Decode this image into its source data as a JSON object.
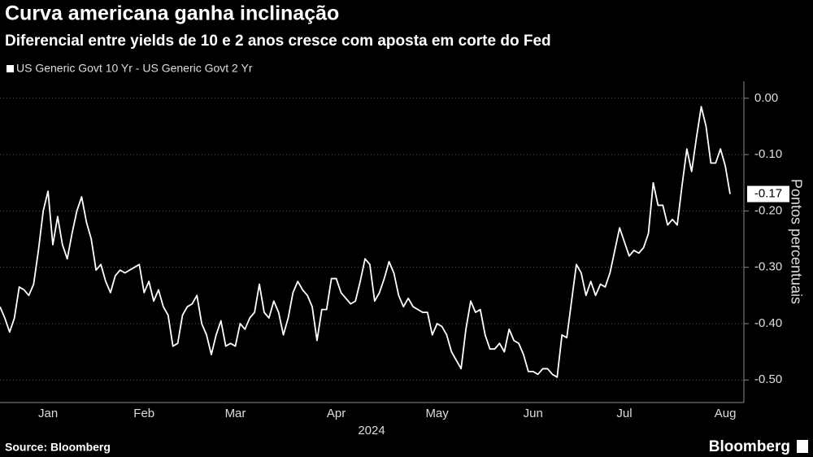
{
  "chart_data": {
    "type": "line",
    "title": "Curva americana ganha inclinação",
    "subtitle": "Diferencial entre yields de 10 e 2 anos cresce com aposta em corte do Fed",
    "y_label": "Pontos percentuais",
    "x_label": "2024",
    "source": "Source: Bloomberg",
    "brand": "Bloomberg",
    "grid": true,
    "series": [
      {
        "name": "US Generic Govt 10 Yr - US Generic Govt 2 Yr",
        "color": "#ffffff",
        "values": [
          -0.37,
          -0.39,
          -0.415,
          -0.39,
          -0.335,
          -0.34,
          -0.35,
          -0.33,
          -0.27,
          -0.2,
          -0.165,
          -0.26,
          -0.21,
          -0.26,
          -0.285,
          -0.24,
          -0.2,
          -0.175,
          -0.22,
          -0.25,
          -0.305,
          -0.295,
          -0.325,
          -0.345,
          -0.315,
          -0.305,
          -0.31,
          -0.305,
          -0.3,
          -0.295,
          -0.345,
          -0.325,
          -0.36,
          -0.34,
          -0.37,
          -0.385,
          -0.44,
          -0.435,
          -0.385,
          -0.37,
          -0.365,
          -0.35,
          -0.4,
          -0.42,
          -0.455,
          -0.42,
          -0.395,
          -0.44,
          -0.435,
          -0.44,
          -0.4,
          -0.41,
          -0.39,
          -0.38,
          -0.33,
          -0.38,
          -0.39,
          -0.36,
          -0.38,
          -0.42,
          -0.39,
          -0.345,
          -0.325,
          -0.34,
          -0.35,
          -0.37,
          -0.43,
          -0.375,
          -0.375,
          -0.32,
          -0.32,
          -0.345,
          -0.355,
          -0.365,
          -0.36,
          -0.325,
          -0.285,
          -0.295,
          -0.36,
          -0.345,
          -0.32,
          -0.29,
          -0.31,
          -0.35,
          -0.37,
          -0.355,
          -0.37,
          -0.375,
          -0.38,
          -0.38,
          -0.42,
          -0.4,
          -0.405,
          -0.42,
          -0.45,
          -0.465,
          -0.48,
          -0.41,
          -0.36,
          -0.38,
          -0.375,
          -0.42,
          -0.445,
          -0.445,
          -0.435,
          -0.45,
          -0.41,
          -0.43,
          -0.435,
          -0.455,
          -0.485,
          -0.485,
          -0.49,
          -0.48,
          -0.48,
          -0.49,
          -0.495,
          -0.42,
          -0.425,
          -0.36,
          -0.295,
          -0.31,
          -0.35,
          -0.325,
          -0.35,
          -0.33,
          -0.335,
          -0.31,
          -0.27,
          -0.23,
          -0.255,
          -0.28,
          -0.27,
          -0.275,
          -0.265,
          -0.24,
          -0.15,
          -0.19,
          -0.19,
          -0.225,
          -0.215,
          -0.225,
          -0.155,
          -0.09,
          -0.13,
          -0.07,
          -0.015,
          -0.05,
          -0.115,
          -0.115,
          -0.09,
          -0.12,
          -0.17
        ]
      }
    ],
    "categories": [
      null,
      null,
      null,
      null,
      null,
      null,
      null,
      null,
      null,
      null,
      "Jan",
      null,
      null,
      null,
      null,
      null,
      null,
      null,
      null,
      null,
      null,
      null,
      null,
      null,
      null,
      null,
      null,
      null,
      null,
      null,
      "Feb",
      null,
      null,
      null,
      null,
      null,
      null,
      null,
      null,
      null,
      null,
      null,
      null,
      null,
      null,
      null,
      null,
      null,
      null,
      "Mar",
      null,
      null,
      null,
      null,
      null,
      null,
      null,
      null,
      null,
      null,
      null,
      null,
      null,
      null,
      null,
      null,
      null,
      null,
      null,
      null,
      "Apr",
      null,
      null,
      null,
      null,
      null,
      null,
      null,
      null,
      null,
      null,
      null,
      null,
      null,
      null,
      null,
      null,
      null,
      null,
      null,
      null,
      "May",
      null,
      null,
      null,
      null,
      null,
      null,
      null,
      null,
      null,
      null,
      null,
      null,
      null,
      null,
      null,
      null,
      null,
      null,
      null,
      "Jun",
      null,
      null,
      null,
      null,
      null,
      null,
      null,
      null,
      null,
      null,
      null,
      null,
      null,
      null,
      null,
      null,
      null,
      null,
      "Jul",
      null,
      null,
      null,
      null,
      null,
      null,
      null,
      null,
      null,
      null,
      null,
      null,
      null,
      null,
      null,
      null,
      null,
      null,
      null,
      null,
      "Aug",
      null
    ],
    "ylim": [
      -0.54,
      0.03
    ],
    "yticks": [
      {
        "value": 0,
        "label": "0.00"
      },
      {
        "value": -0.1,
        "label": "-0.10"
      },
      {
        "value": -0.2,
        "label": "-0.20"
      },
      {
        "value": -0.3,
        "label": "-0.30"
      },
      {
        "value": -0.4,
        "label": "-0.40"
      },
      {
        "value": -0.5,
        "label": "-0.50"
      }
    ]
  }
}
